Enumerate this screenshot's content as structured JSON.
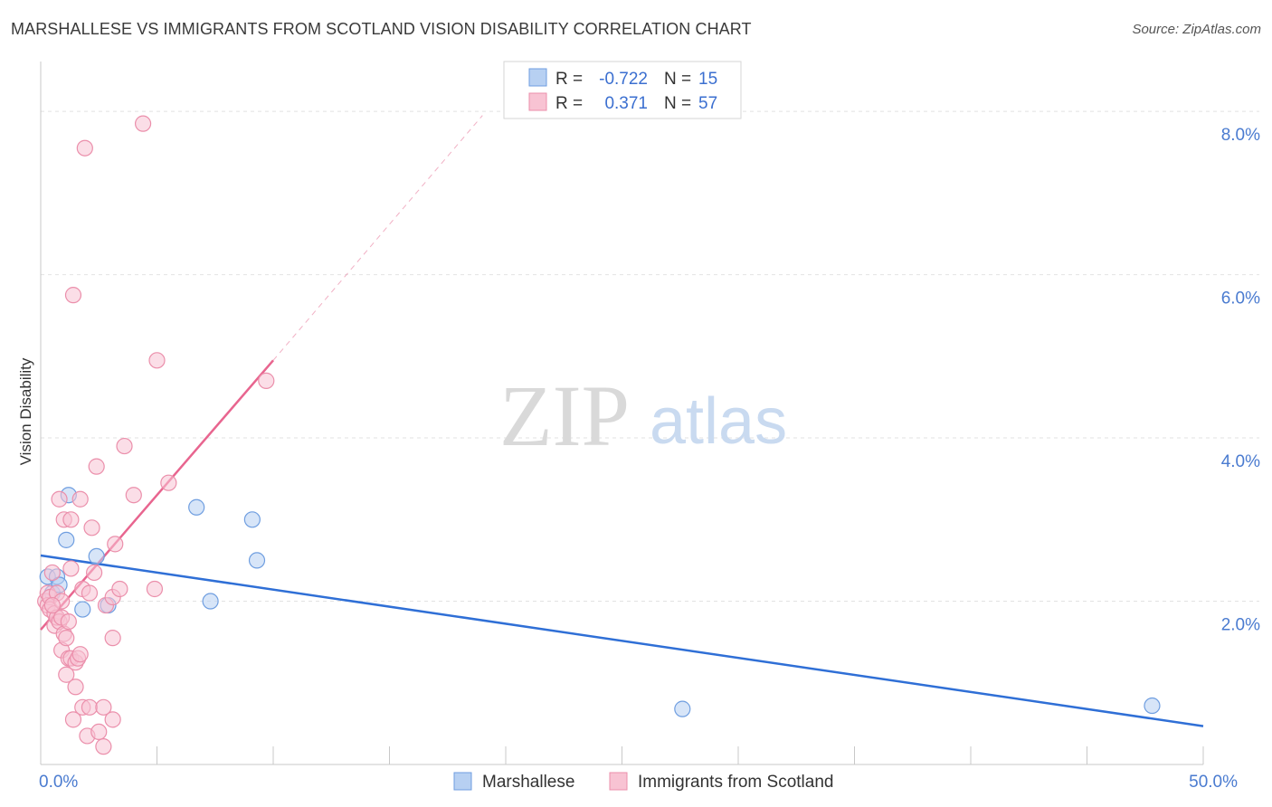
{
  "title": "MARSHALLESE VS IMMIGRANTS FROM SCOTLAND VISION DISABILITY CORRELATION CHART",
  "source": "Source: ZipAtlas.com",
  "watermark": {
    "part1": "ZIP",
    "part2": "atlas"
  },
  "colors": {
    "blue_fill": "#b7d0f2",
    "blue_stroke": "#6f9ee0",
    "blue_line": "#2f6fd6",
    "pink_fill": "#f8c3d3",
    "pink_stroke": "#eb8fab",
    "pink_line": "#e8658f",
    "grid": "#e2e2e2",
    "axis": "#c8c8c8"
  },
  "stats": {
    "r_label": "R =",
    "n_label": "N =",
    "series": [
      {
        "r": "-0.722",
        "n": "15"
      },
      {
        "r": "0.371",
        "n": "57"
      }
    ]
  },
  "chart_data": {
    "type": "scatter",
    "title": "MARSHALLESE VS IMMIGRANTS FROM SCOTLAND VISION DISABILITY CORRELATION CHART",
    "xlabel": "",
    "ylabel": "Vision Disability",
    "xlim": [
      0,
      50
    ],
    "ylim": [
      0,
      8.5
    ],
    "x_tick_labels": [
      {
        "value": 0,
        "label": "0.0%"
      },
      {
        "value": 50,
        "label": "50.0%"
      }
    ],
    "x_minor_ticks": [
      0,
      5,
      10,
      15,
      20,
      25,
      30,
      35,
      40,
      45,
      50
    ],
    "y_ticks": [
      {
        "value": 2,
        "label": "2.0%"
      },
      {
        "value": 4,
        "label": "4.0%"
      },
      {
        "value": 6,
        "label": "6.0%"
      },
      {
        "value": 8,
        "label": "8.0%"
      }
    ],
    "grid": true,
    "legend_position": "bottom-center",
    "series": [
      {
        "name": "Marshallese",
        "color": "blue",
        "points": [
          [
            0.3,
            2.3
          ],
          [
            0.5,
            2.1
          ],
          [
            0.7,
            2.3
          ],
          [
            0.8,
            2.2
          ],
          [
            1.1,
            2.75
          ],
          [
            1.2,
            3.3
          ],
          [
            1.8,
            1.9
          ],
          [
            2.4,
            2.55
          ],
          [
            2.9,
            1.95
          ],
          [
            6.7,
            3.15
          ],
          [
            7.3,
            2.0
          ],
          [
            9.1,
            3.0
          ],
          [
            9.3,
            2.5
          ],
          [
            27.6,
            0.68
          ],
          [
            47.8,
            0.72
          ]
        ],
        "trend": {
          "x0": 0,
          "y0": 2.56,
          "x1": 50,
          "y1": 0.47
        }
      },
      {
        "name": "Immigrants from Scotland",
        "color": "pink",
        "points": [
          [
            0.2,
            2.0
          ],
          [
            0.3,
            2.1
          ],
          [
            0.3,
            1.95
          ],
          [
            0.4,
            2.05
          ],
          [
            0.4,
            1.9
          ],
          [
            0.5,
            2.35
          ],
          [
            0.6,
            1.7
          ],
          [
            0.6,
            1.85
          ],
          [
            0.7,
            1.8
          ],
          [
            0.7,
            2.1
          ],
          [
            0.8,
            3.25
          ],
          [
            0.8,
            1.75
          ],
          [
            0.9,
            1.8
          ],
          [
            0.9,
            2.0
          ],
          [
            0.9,
            1.4
          ],
          [
            1.0,
            3.0
          ],
          [
            1.0,
            1.6
          ],
          [
            1.1,
            1.55
          ],
          [
            1.1,
            1.1
          ],
          [
            1.2,
            1.3
          ],
          [
            1.2,
            1.75
          ],
          [
            1.3,
            3.0
          ],
          [
            1.3,
            2.4
          ],
          [
            1.3,
            1.3
          ],
          [
            1.4,
            5.75
          ],
          [
            1.4,
            0.55
          ],
          [
            1.5,
            1.25
          ],
          [
            1.6,
            1.3
          ],
          [
            1.7,
            1.35
          ],
          [
            1.7,
            3.25
          ],
          [
            1.8,
            2.15
          ],
          [
            1.8,
            0.7
          ],
          [
            1.9,
            7.55
          ],
          [
            2.0,
            0.35
          ],
          [
            2.1,
            0.7
          ],
          [
            2.1,
            2.1
          ],
          [
            2.2,
            2.9
          ],
          [
            2.3,
            2.35
          ],
          [
            2.4,
            3.65
          ],
          [
            2.5,
            0.4
          ],
          [
            2.7,
            0.7
          ],
          [
            2.7,
            0.22
          ],
          [
            2.8,
            1.95
          ],
          [
            3.1,
            0.55
          ],
          [
            3.1,
            2.05
          ],
          [
            3.1,
            1.55
          ],
          [
            3.2,
            2.7
          ],
          [
            3.6,
            3.9
          ],
          [
            3.4,
            2.15
          ],
          [
            4.0,
            3.3
          ],
          [
            4.4,
            7.85
          ],
          [
            4.9,
            2.15
          ],
          [
            5.0,
            4.95
          ],
          [
            5.5,
            3.45
          ],
          [
            9.7,
            4.7
          ],
          [
            0.5,
            1.95
          ],
          [
            1.5,
            0.95
          ]
        ],
        "trend": {
          "x0": 0,
          "y0": 1.65,
          "x1": 10,
          "y1": 4.95
        },
        "trend_extension": {
          "x0": 10,
          "y0": 4.95,
          "x1": 19,
          "y1": 7.95
        }
      }
    ]
  }
}
